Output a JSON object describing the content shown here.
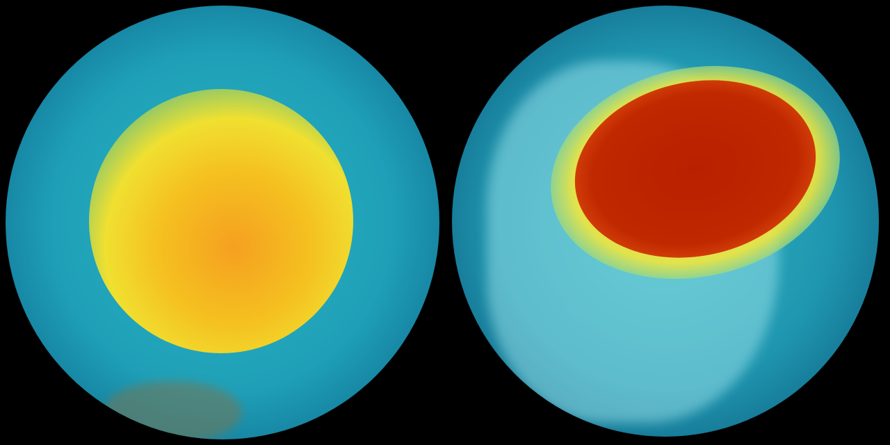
{
  "image": {
    "colors": {
      "background": "#000000",
      "ocean": "#1fa0b8",
      "low_value": "#2ab0c0",
      "mid_value": "#f0e030",
      "high_value": "#b82000"
    },
    "globes": [
      {
        "view": "left-globe",
        "feature": "yellow-orange-region"
      },
      {
        "view": "right-globe",
        "feature": "red-region"
      }
    ]
  }
}
